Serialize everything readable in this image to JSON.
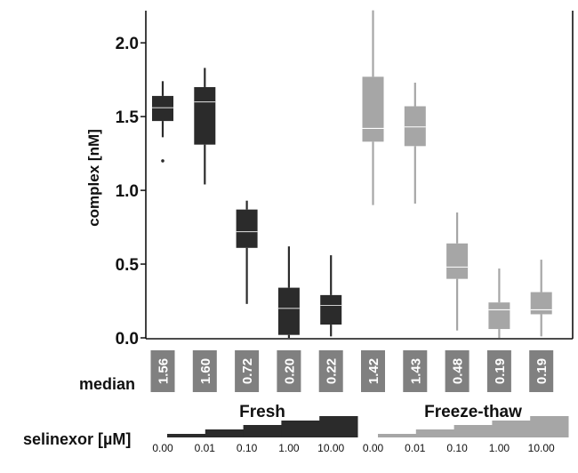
{
  "chart_data": {
    "type": "box",
    "ylabel": "complex [nM]",
    "ylim": [
      0,
      2.2
    ],
    "yticks": [
      "0.0",
      "0.5",
      "1.0",
      "1.5",
      "2.0"
    ],
    "median_row_label": "median",
    "selinexor_label": "selinexor  [µM]",
    "groups": [
      {
        "name": "Fresh",
        "color": "#2b2b2b",
        "median_line_color": "#cfcfcf"
      },
      {
        "name": "Freeze-thaw",
        "color": "#a6a6a6",
        "median_line_color": "#ffffff"
      }
    ],
    "concentrations": [
      "0.00",
      "0.01",
      "0.10",
      "1.00",
      "10.00"
    ],
    "median_box_color": "#808080",
    "series": [
      {
        "group": 0,
        "conc": "0.00",
        "median_label": "1.56",
        "min": 1.36,
        "q1": 1.47,
        "median": 1.56,
        "q3": 1.64,
        "max": 1.74,
        "outliers": [
          1.2
        ]
      },
      {
        "group": 0,
        "conc": "0.01",
        "median_label": "1.60",
        "min": 1.04,
        "q1": 1.31,
        "median": 1.6,
        "q3": 1.7,
        "max": 1.83,
        "outliers": []
      },
      {
        "group": 0,
        "conc": "0.10",
        "median_label": "0.72",
        "min": 0.23,
        "q1": 0.61,
        "median": 0.72,
        "q3": 0.87,
        "max": 0.93,
        "outliers": []
      },
      {
        "group": 0,
        "conc": "1.00",
        "median_label": "0.20",
        "min": 0.0,
        "q1": 0.02,
        "median": 0.2,
        "q3": 0.34,
        "max": 0.62,
        "outliers": []
      },
      {
        "group": 0,
        "conc": "10.00",
        "median_label": "0.22",
        "min": 0.01,
        "q1": 0.09,
        "median": 0.22,
        "q3": 0.29,
        "max": 0.56,
        "outliers": []
      },
      {
        "group": 1,
        "conc": "0.00",
        "median_label": "1.42",
        "min": 0.9,
        "q1": 1.33,
        "median": 1.42,
        "q3": 1.77,
        "max": 2.22,
        "outliers": []
      },
      {
        "group": 1,
        "conc": "0.01",
        "median_label": "1.43",
        "min": 0.91,
        "q1": 1.3,
        "median": 1.43,
        "q3": 1.57,
        "max": 1.73,
        "outliers": []
      },
      {
        "group": 1,
        "conc": "0.10",
        "median_label": "0.48",
        "min": 0.05,
        "q1": 0.4,
        "median": 0.48,
        "q3": 0.64,
        "max": 0.85,
        "outliers": []
      },
      {
        "group": 1,
        "conc": "1.00",
        "median_label": "0.19",
        "min": 0.0,
        "q1": 0.06,
        "median": 0.19,
        "q3": 0.24,
        "max": 0.47,
        "outliers": []
      },
      {
        "group": 1,
        "conc": "10.00",
        "median_label": "0.19",
        "min": 0.01,
        "q1": 0.16,
        "median": 0.19,
        "q3": 0.31,
        "max": 0.53,
        "outliers": []
      }
    ]
  }
}
